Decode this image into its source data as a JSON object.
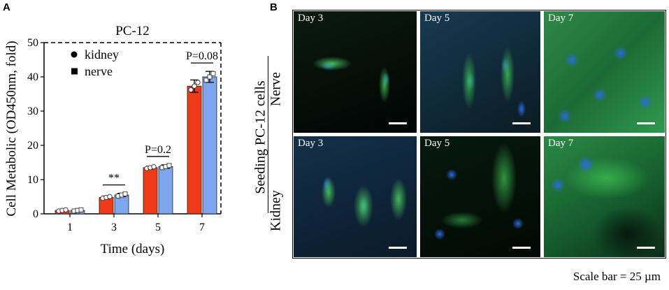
{
  "panel_a": {
    "letter": "A"
  },
  "panel_b": {
    "letter": "B",
    "side_label": "Seeding PC-12 cells",
    "rows": [
      {
        "label": "Nerve",
        "cells": [
          "Day 3",
          "Day 5",
          "Day 7"
        ]
      },
      {
        "label": "Kidney",
        "cells": [
          "Day 3",
          "Day 5",
          "Day 7"
        ]
      }
    ],
    "scale_caption": "Scale bar = 25 µm",
    "colors": {
      "nucleus": "#1f5fd0",
      "cytoskeleton": "#35c24a",
      "background": "#020a06"
    }
  },
  "chart_data": {
    "type": "bar",
    "title": "PC-12",
    "xlabel": "Time (days)",
    "ylabel": "Cell Metabolic (OD450nm, fold)",
    "categories": [
      "1",
      "3",
      "5",
      "7"
    ],
    "ylim": [
      0,
      50
    ],
    "yticks": [
      "0",
      "10",
      "20",
      "30",
      "40",
      "50"
    ],
    "legend_position": "top-left",
    "series": [
      {
        "name": "kidney",
        "color": "#f03a17",
        "marker": "circle",
        "values": [
          1.0,
          4.8,
          13.5,
          37.3
        ],
        "errors": [
          0.3,
          0.4,
          0.4,
          1.8
        ]
      },
      {
        "name": "nerve",
        "color": "#7ea6ee",
        "marker": "square",
        "values": [
          1.0,
          5.5,
          13.8,
          40.0
        ],
        "errors": [
          0.3,
          0.5,
          0.5,
          1.6
        ]
      }
    ],
    "annotations": [
      {
        "category": "3",
        "text": "**"
      },
      {
        "category": "5",
        "text": "P=0.2"
      },
      {
        "category": "7",
        "text": "P=0.08"
      }
    ]
  }
}
